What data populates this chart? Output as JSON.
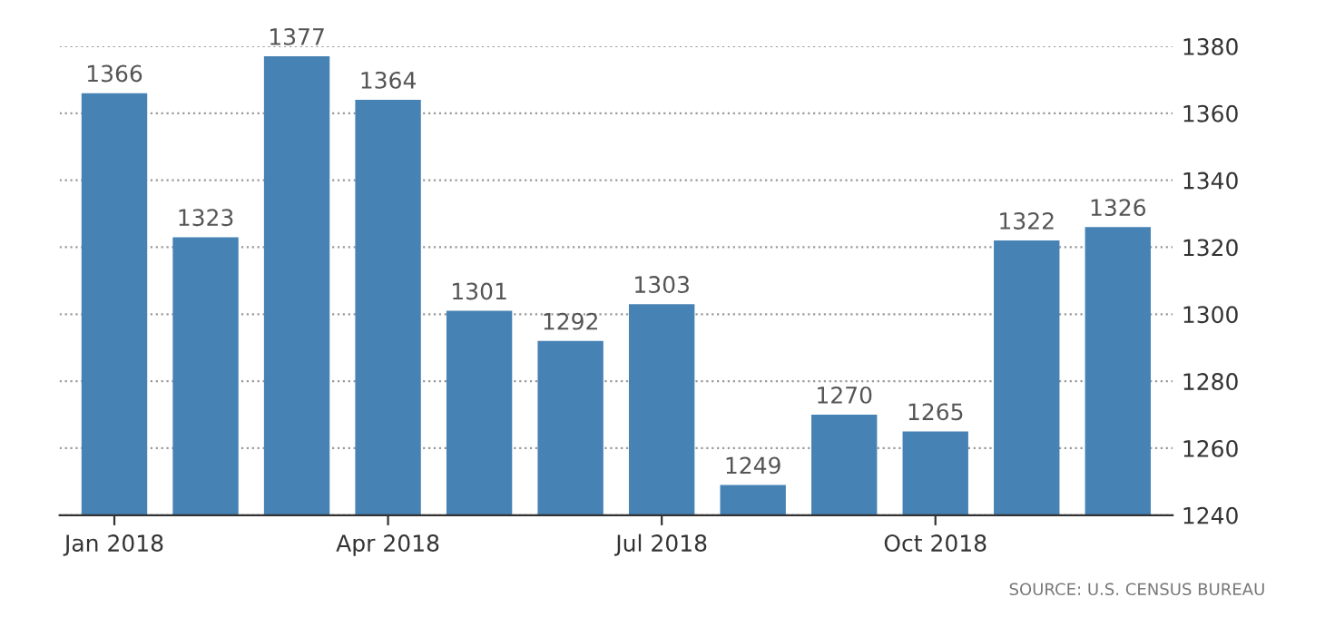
{
  "chart_data": {
    "type": "bar",
    "categories": [
      "Jan 2018",
      null,
      null,
      "Apr 2018",
      null,
      null,
      "Jul 2018",
      null,
      null,
      "Oct 2018",
      null,
      null
    ],
    "values": [
      1366,
      1323,
      1377,
      1364,
      1301,
      1292,
      1303,
      1249,
      1270,
      1265,
      1322,
      1326
    ],
    "color": "#4682b4",
    "ylim": [
      1240,
      1380
    ],
    "yticks": [
      1240,
      1260,
      1280,
      1300,
      1320,
      1340,
      1360,
      1380
    ],
    "grid": "y",
    "data_labels": true,
    "annotations": [
      "SOURCE: U.S. CENSUS BUREAU"
    ]
  }
}
